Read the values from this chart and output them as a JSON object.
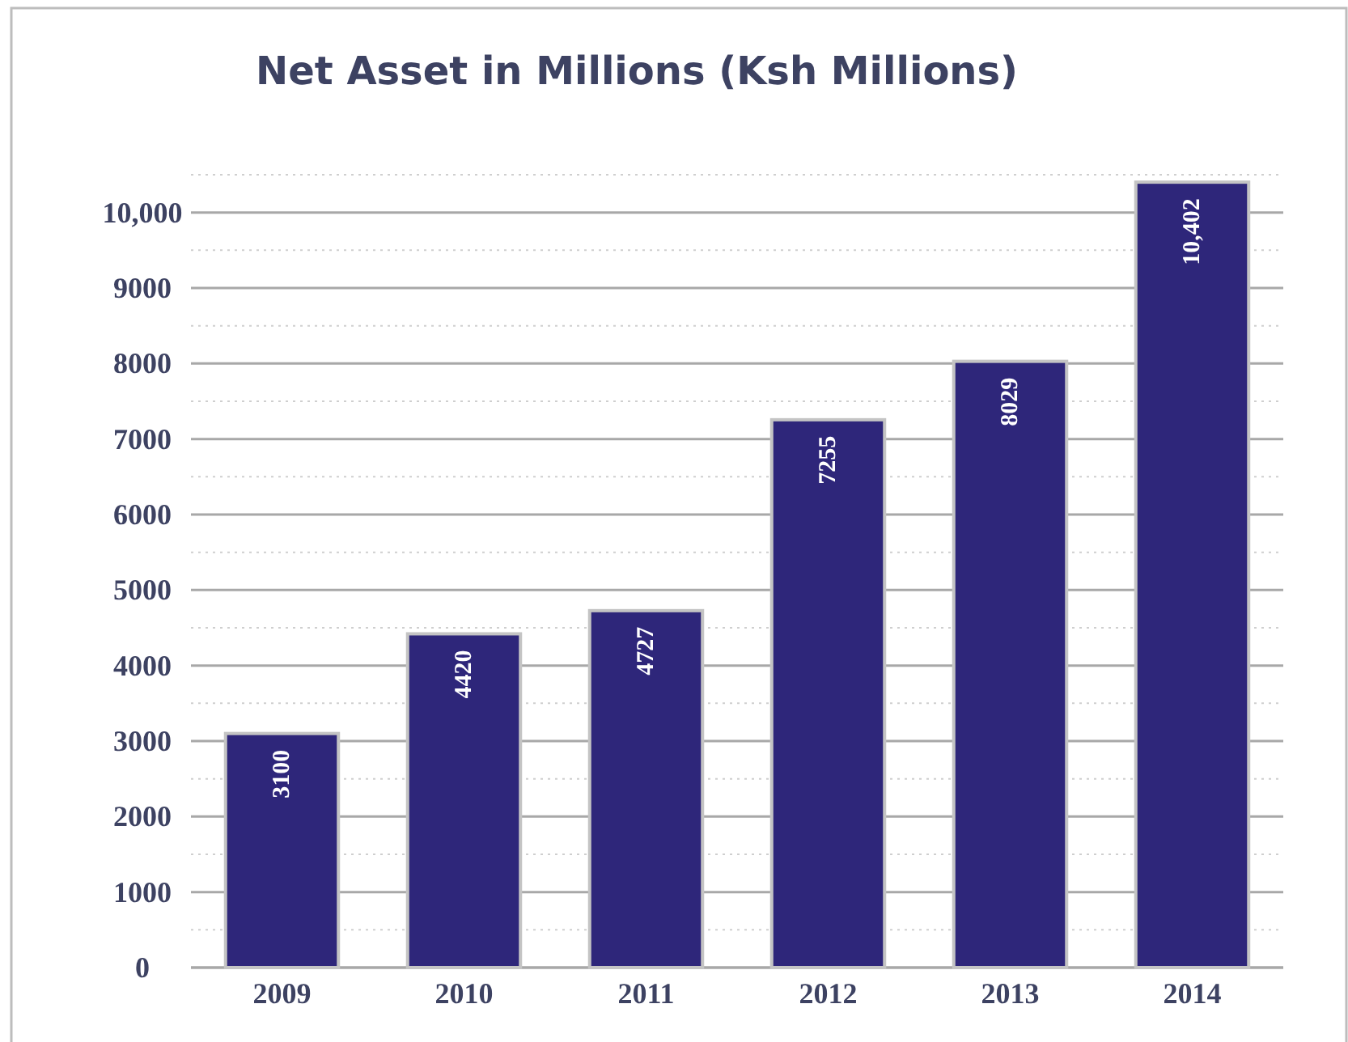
{
  "chart_data": {
    "type": "bar",
    "title": "Net Asset in Millions (Ksh Millions)",
    "categories": [
      "2009",
      "2010",
      "2011",
      "2012",
      "2013",
      "2014"
    ],
    "values": [
      3100,
      4420,
      4727,
      7255,
      8029,
      10402
    ],
    "value_labels": [
      "3100",
      "4420",
      "4727",
      "7255",
      "8029",
      "10,402"
    ],
    "color": "#2e267a",
    "ylim": [
      0,
      10500
    ],
    "yticks": [
      0,
      {
        "value": 500,
        "label": null
      },
      1000,
      {
        "value": 1500,
        "label": null
      },
      2000,
      {
        "value": 2500,
        "label": null
      },
      3000,
      {
        "value": 3500,
        "label": null
      },
      4000,
      {
        "value": 4500,
        "label": null
      },
      5000,
      {
        "value": 5500,
        "label": null
      },
      6000,
      {
        "value": 6500,
        "label": null
      },
      7000,
      {
        "value": 7500,
        "label": null
      },
      8000,
      {
        "value": 8500,
        "label": null
      },
      9000,
      {
        "value": 9500,
        "label": null
      },
      {
        "value": 10000,
        "label": "10,000"
      },
      {
        "value": 10500,
        "label": null
      }
    ],
    "grid": "y"
  }
}
